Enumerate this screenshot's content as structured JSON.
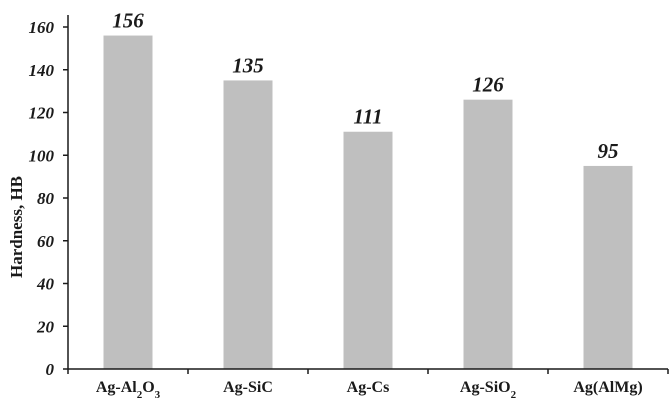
{
  "chart_data": {
    "type": "bar",
    "categories": [
      {
        "id": "ag-al2o3",
        "parts": [
          {
            "t": "Ag-Al"
          },
          {
            "t": "2",
            "sub": true
          },
          {
            "t": "O"
          },
          {
            "t": "3",
            "sub": true
          }
        ]
      },
      {
        "id": "ag-sic",
        "parts": [
          {
            "t": "Ag-SiC"
          }
        ]
      },
      {
        "id": "ag-cs",
        "parts": [
          {
            "t": "Ag-Cs"
          }
        ]
      },
      {
        "id": "ag-sio2",
        "parts": [
          {
            "t": "Ag-SiO"
          },
          {
            "t": "2",
            "sub": true
          }
        ]
      },
      {
        "id": "ag-almg",
        "parts": [
          {
            "t": "Ag(AlMg)"
          }
        ]
      }
    ],
    "values": [
      156,
      135,
      111,
      126,
      95
    ],
    "data_labels": [
      "156",
      "135",
      "111",
      "126",
      "95"
    ],
    "title": "",
    "xlabel": "",
    "ylabel": "Hardness, HB",
    "ylim": [
      0,
      160
    ],
    "yticks": [
      0,
      20,
      40,
      60,
      80,
      100,
      120,
      140,
      160
    ],
    "grid": false,
    "legend": "none",
    "bar_color": "#bfbfbf",
    "axis_color": "#1a1a1a"
  }
}
